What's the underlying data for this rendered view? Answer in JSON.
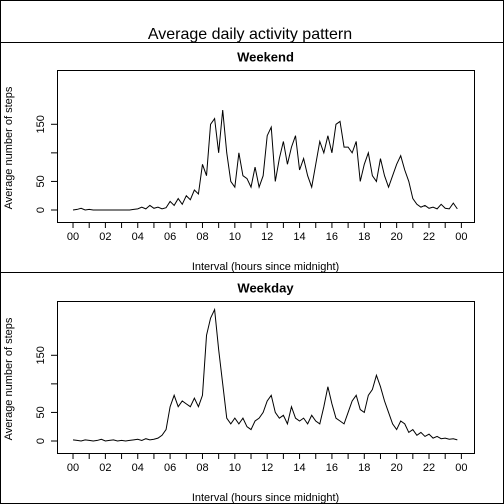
{
  "title": "Average daily activity pattern",
  "chart_data": [
    {
      "type": "line",
      "title": "Weekend",
      "xlabel": "Interval (hours since midnight)",
      "ylabel": "Average number of steps",
      "color": "#000000",
      "x": [
        0,
        0.25,
        0.5,
        0.75,
        1,
        1.25,
        1.5,
        1.75,
        2,
        2.25,
        2.5,
        2.75,
        3,
        3.25,
        3.5,
        3.75,
        4,
        4.25,
        4.5,
        4.75,
        5,
        5.25,
        5.5,
        5.75,
        6,
        6.25,
        6.5,
        6.75,
        7,
        7.25,
        7.5,
        7.75,
        8,
        8.25,
        8.5,
        8.75,
        9,
        9.25,
        9.5,
        9.75,
        10,
        10.25,
        10.5,
        10.75,
        11,
        11.25,
        11.5,
        11.75,
        12,
        12.25,
        12.5,
        12.75,
        13,
        13.25,
        13.5,
        13.75,
        14,
        14.25,
        14.5,
        14.75,
        15,
        15.25,
        15.5,
        15.75,
        16,
        16.25,
        16.5,
        16.75,
        17,
        17.25,
        17.5,
        17.75,
        18,
        18.25,
        18.5,
        18.75,
        19,
        19.25,
        19.5,
        19.75,
        20,
        20.25,
        20.5,
        20.75,
        21,
        21.25,
        21.5,
        21.75,
        22,
        22.25,
        22.5,
        22.75,
        23,
        23.25,
        23.5,
        23.75
      ],
      "values": [
        0,
        1,
        3,
        0,
        1,
        0,
        0,
        0,
        0,
        0,
        0,
        0,
        0,
        0,
        0,
        1,
        2,
        5,
        2,
        8,
        3,
        5,
        2,
        4,
        15,
        8,
        20,
        10,
        25,
        18,
        35,
        28,
        80,
        60,
        150,
        160,
        100,
        175,
        100,
        50,
        40,
        100,
        60,
        55,
        40,
        75,
        40,
        60,
        130,
        145,
        50,
        90,
        120,
        80,
        110,
        130,
        70,
        90,
        60,
        40,
        80,
        120,
        100,
        130,
        100,
        150,
        155,
        110,
        110,
        100,
        120,
        50,
        80,
        100,
        60,
        50,
        90,
        60,
        40,
        60,
        80,
        95,
        70,
        50,
        20,
        10,
        5,
        8,
        3,
        5,
        2,
        10,
        3,
        2,
        12,
        2
      ],
      "xlim": [
        -0.99,
        24.78
      ],
      "ylim": [
        -21,
        245
      ],
      "yticks": [
        0,
        50,
        {
          "value": 100,
          "label": null
        },
        150
      ],
      "xticks": [
        {
          "value": 0,
          "label": "00"
        },
        {
          "value": 1,
          "label": null
        },
        {
          "value": 2,
          "label": "02"
        },
        {
          "value": 3,
          "label": null
        },
        {
          "value": 4,
          "label": "04"
        },
        {
          "value": 5,
          "label": null
        },
        {
          "value": 6,
          "label": "06"
        },
        {
          "value": 7,
          "label": null
        },
        {
          "value": 8,
          "label": "08"
        },
        {
          "value": 9,
          "label": null
        },
        {
          "value": 10,
          "label": "10"
        },
        {
          "value": 11,
          "label": null
        },
        {
          "value": 12,
          "label": "12"
        },
        {
          "value": 13,
          "label": null
        },
        {
          "value": 14,
          "label": "14"
        },
        {
          "value": 15,
          "label": null
        },
        {
          "value": 16,
          "label": "16"
        },
        {
          "value": 17,
          "label": null
        },
        {
          "value": 18,
          "label": "18"
        },
        {
          "value": 19,
          "label": null
        },
        {
          "value": 20,
          "label": "20"
        },
        {
          "value": 21,
          "label": null
        },
        {
          "value": 22,
          "label": "22"
        },
        {
          "value": 23,
          "label": null
        },
        {
          "value": 24,
          "label": "00"
        }
      ]
    },
    {
      "type": "line",
      "title": "Weekday",
      "xlabel": "Interval (hours since midnight)",
      "ylabel": "Average number of steps",
      "color": "#000000",
      "x": [
        0,
        0.25,
        0.5,
        0.75,
        1,
        1.25,
        1.5,
        1.75,
        2,
        2.25,
        2.5,
        2.75,
        3,
        3.25,
        3.5,
        3.75,
        4,
        4.25,
        4.5,
        4.75,
        5,
        5.25,
        5.5,
        5.75,
        6,
        6.25,
        6.5,
        6.75,
        7,
        7.25,
        7.5,
        7.75,
        8,
        8.25,
        8.5,
        8.75,
        9,
        9.25,
        9.5,
        9.75,
        10,
        10.25,
        10.5,
        10.75,
        11,
        11.25,
        11.5,
        11.75,
        12,
        12.25,
        12.5,
        12.75,
        13,
        13.25,
        13.5,
        13.75,
        14,
        14.25,
        14.5,
        14.75,
        15,
        15.25,
        15.5,
        15.75,
        16,
        16.25,
        16.5,
        16.75,
        17,
        17.25,
        17.5,
        17.75,
        18,
        18.25,
        18.5,
        18.75,
        19,
        19.25,
        19.5,
        19.75,
        20,
        20.25,
        20.5,
        20.75,
        21,
        21.25,
        21.5,
        21.75,
        22,
        22.25,
        22.5,
        22.75,
        23,
        23.25,
        23.5,
        23.75
      ],
      "values": [
        2,
        1,
        0,
        2,
        1,
        0,
        1,
        3,
        0,
        1,
        2,
        0,
        1,
        0,
        1,
        2,
        3,
        1,
        4,
        2,
        3,
        5,
        10,
        20,
        60,
        80,
        60,
        70,
        65,
        60,
        75,
        60,
        80,
        185,
        215,
        230,
        160,
        100,
        40,
        30,
        40,
        30,
        40,
        25,
        20,
        35,
        40,
        50,
        70,
        80,
        50,
        40,
        45,
        30,
        60,
        40,
        35,
        40,
        30,
        45,
        35,
        30,
        60,
        95,
        65,
        40,
        35,
        30,
        50,
        70,
        80,
        55,
        50,
        80,
        90,
        115,
        95,
        70,
        50,
        30,
        20,
        35,
        30,
        15,
        20,
        10,
        15,
        8,
        12,
        5,
        8,
        4,
        5,
        3,
        4,
        2
      ],
      "xlim": [
        -0.99,
        24.78
      ],
      "ylim": [
        -21,
        245
      ],
      "yticks": [
        0,
        50,
        {
          "value": 100,
          "label": null
        },
        150
      ],
      "xticks": [
        {
          "value": 0,
          "label": "00"
        },
        {
          "value": 1,
          "label": null
        },
        {
          "value": 2,
          "label": "02"
        },
        {
          "value": 3,
          "label": null
        },
        {
          "value": 4,
          "label": "04"
        },
        {
          "value": 5,
          "label": null
        },
        {
          "value": 6,
          "label": "06"
        },
        {
          "value": 7,
          "label": null
        },
        {
          "value": 8,
          "label": "08"
        },
        {
          "value": 9,
          "label": null
        },
        {
          "value": 10,
          "label": "10"
        },
        {
          "value": 11,
          "label": null
        },
        {
          "value": 12,
          "label": "12"
        },
        {
          "value": 13,
          "label": null
        },
        {
          "value": 14,
          "label": "14"
        },
        {
          "value": 15,
          "label": null
        },
        {
          "value": 16,
          "label": "16"
        },
        {
          "value": 17,
          "label": null
        },
        {
          "value": 18,
          "label": "18"
        },
        {
          "value": 19,
          "label": null
        },
        {
          "value": 20,
          "label": "20"
        },
        {
          "value": 21,
          "label": null
        },
        {
          "value": 22,
          "label": "22"
        },
        {
          "value": 23,
          "label": null
        },
        {
          "value": 24,
          "label": "00"
        }
      ]
    }
  ]
}
